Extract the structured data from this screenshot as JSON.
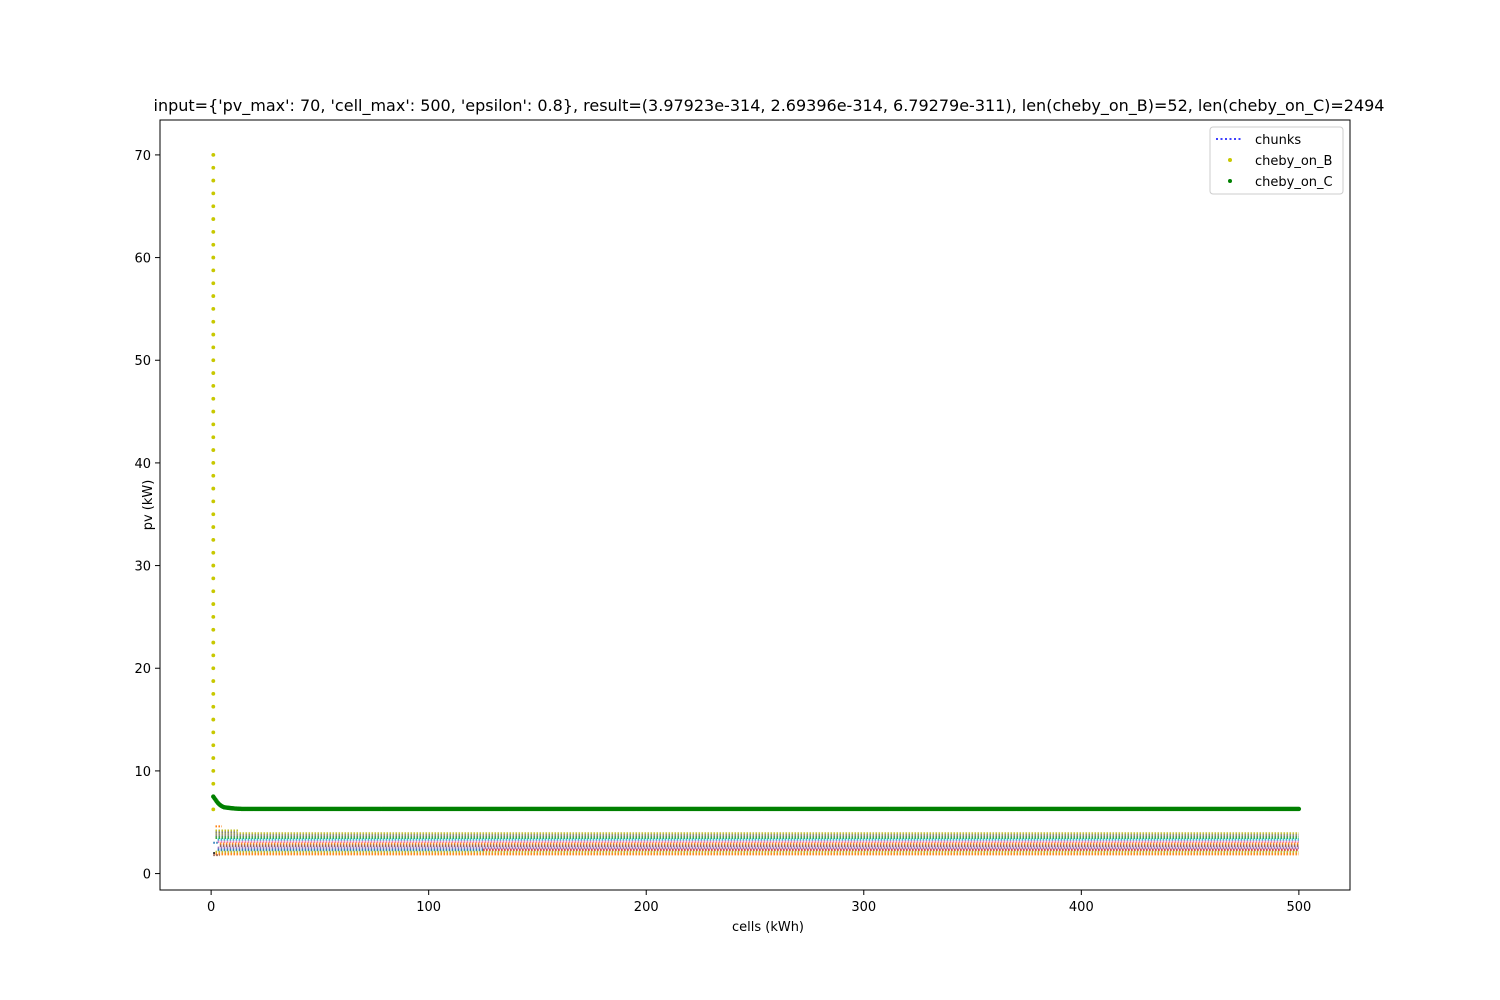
{
  "chart_data": {
    "type": "scatter",
    "title": "input={'pv_max': 70, 'cell_max': 500, 'epsilon': 0.8}, result=(3.97923e-314, 2.69396e-314, 6.79279e-311), len(cheby_on_B)=52, len(cheby_on_C)=2494",
    "xlabel": "cells (kWh)",
    "ylabel": "pv (kW)",
    "xlim": [
      -23.5,
      523.5
    ],
    "ylim": [
      -1.6,
      73.4
    ],
    "xticks": [
      0,
      100,
      200,
      300,
      400,
      500
    ],
    "yticks": [
      0,
      10,
      20,
      30,
      40,
      50,
      60,
      70
    ],
    "grid": false,
    "legend_position": "top-right",
    "series": [
      {
        "name": "chunks",
        "style": "dotted-line",
        "color": "#0000ff",
        "bands": [
          {
            "y": 3.9,
            "x_start": 2,
            "x_end": 500,
            "color": "#bcbd22"
          },
          {
            "y": 3.7,
            "x_start": 2,
            "x_end": 500,
            "color": "#7f7f7f"
          },
          {
            "y": 3.5,
            "x_start": 2,
            "x_end": 500,
            "color": "#2ca02c"
          },
          {
            "y": 3.3,
            "x_start": 3,
            "x_end": 500,
            "color": "#17becf"
          },
          {
            "y": 3.1,
            "x_start": 3,
            "x_end": 500,
            "color": "#e377c2"
          },
          {
            "y": 2.9,
            "x_start": 4,
            "x_end": 500,
            "color": "#ff7f0e"
          },
          {
            "y": 2.7,
            "x_start": 4,
            "x_end": 500,
            "color": "#8c564b"
          },
          {
            "y": 2.5,
            "x_start": 3,
            "x_end": 500,
            "color": "#9467bd"
          },
          {
            "y": 2.3,
            "x_start": 3,
            "x_end": 125,
            "color": "#1f77b4"
          },
          {
            "y": 2.3,
            "x_start": 125,
            "x_end": 500,
            "color": "#d62728"
          },
          {
            "y": 2.1,
            "x_start": 2,
            "x_end": 500,
            "color": "#bcbd22"
          },
          {
            "y": 1.9,
            "x_start": 2,
            "x_end": 500,
            "color": "#ff7f0e"
          }
        ]
      },
      {
        "name": "cheby_on_B",
        "style": "points",
        "color": "#c8c800",
        "x": [
          1,
          1,
          1,
          1,
          1,
          1,
          1,
          1,
          1,
          1,
          1,
          1,
          1,
          1,
          1,
          1,
          1,
          1,
          1,
          1,
          1,
          1,
          1,
          1,
          1,
          1,
          1,
          1,
          1,
          1,
          1,
          1,
          1,
          1,
          1,
          1,
          1,
          1,
          1,
          1,
          1,
          1,
          1,
          1,
          1,
          1,
          1,
          1,
          1,
          1,
          1,
          1
        ],
        "y": [
          70,
          68.75,
          67.5,
          66.25,
          65,
          63.75,
          62.5,
          61.25,
          60,
          58.75,
          57.5,
          56.25,
          55,
          53.75,
          52.5,
          51.25,
          50,
          48.75,
          47.5,
          46.25,
          45,
          43.75,
          42.5,
          41.25,
          40,
          38.75,
          37.5,
          36.25,
          35,
          33.75,
          32.5,
          31.25,
          30,
          28.75,
          27.5,
          26.25,
          25,
          23.75,
          22.5,
          21.25,
          20,
          18.75,
          17.5,
          16.25,
          15,
          13.75,
          12.5,
          11.25,
          10,
          8.75,
          7.5,
          6.25
        ]
      },
      {
        "name": "cheby_on_C",
        "style": "points",
        "color": "#008000",
        "curve": {
          "x": [
            1,
            2,
            3,
            4,
            5,
            6,
            8,
            10,
            12,
            14,
            500
          ],
          "y": [
            7.5,
            7.2,
            6.9,
            6.7,
            6.55,
            6.45,
            6.4,
            6.35,
            6.32,
            6.3,
            6.3
          ]
        }
      }
    ]
  }
}
